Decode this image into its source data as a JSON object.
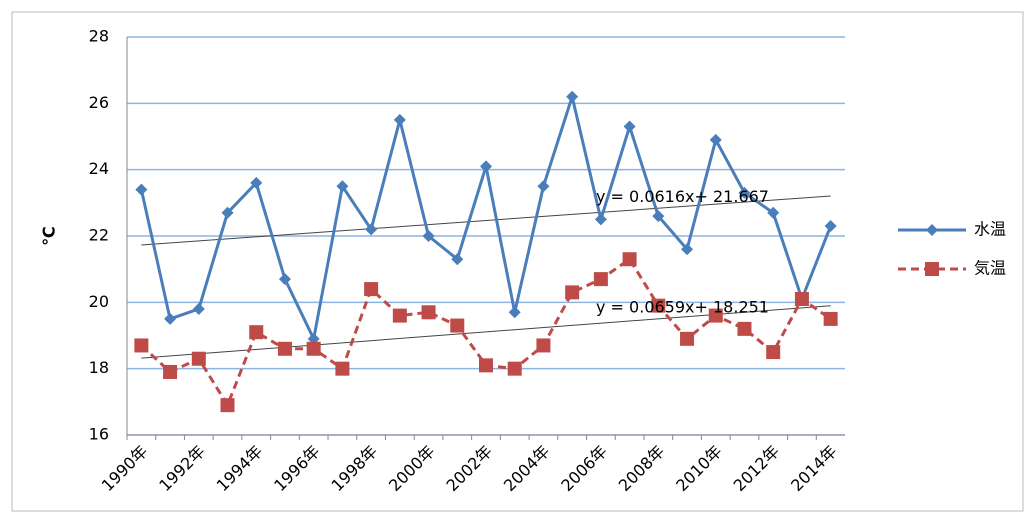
{
  "chart_data": {
    "type": "line",
    "y_label": "℃",
    "categories": [
      "1990年",
      null,
      "1992年",
      null,
      "1994年",
      null,
      "1996年",
      null,
      "1998年",
      null,
      "2000年",
      null,
      "2002年",
      null,
      "2004年",
      null,
      "2006年",
      null,
      "2008年",
      null,
      "2010年",
      null,
      "2012年",
      null,
      "2014年"
    ],
    "series": [
      {
        "name": "水温",
        "color": "#4a7ebb",
        "marker": "diamond",
        "dash": false,
        "values": [
          23.4,
          19.5,
          19.8,
          22.7,
          23.6,
          20.7,
          18.9,
          23.5,
          22.2,
          25.5,
          22.0,
          21.3,
          24.1,
          19.7,
          23.5,
          26.2,
          22.5,
          25.3,
          22.6,
          21.6,
          24.9,
          23.3,
          22.7,
          20.1,
          22.3
        ]
      },
      {
        "name": "気温",
        "color": "#be4b48",
        "marker": "square",
        "dash": true,
        "values": [
          18.7,
          17.9,
          18.3,
          16.9,
          19.1,
          18.6,
          18.6,
          18.0,
          20.4,
          19.6,
          19.7,
          19.3,
          18.1,
          18.0,
          18.7,
          20.3,
          20.7,
          21.3,
          19.9,
          18.9,
          19.6,
          19.2,
          18.5,
          20.1,
          19.5
        ]
      }
    ],
    "trendlines": [
      {
        "label": "y = 0.0616x+ 21.667",
        "slope": 0.0616,
        "intercept": 21.667
      },
      {
        "label": "y = 0.0659x+ 18.251",
        "slope": 0.0659,
        "intercept": 18.251
      }
    ],
    "ylim": [
      16,
      28
    ],
    "yticks": [
      16,
      18,
      20,
      22,
      24,
      26,
      28
    ],
    "grid": true,
    "legend": "right"
  }
}
